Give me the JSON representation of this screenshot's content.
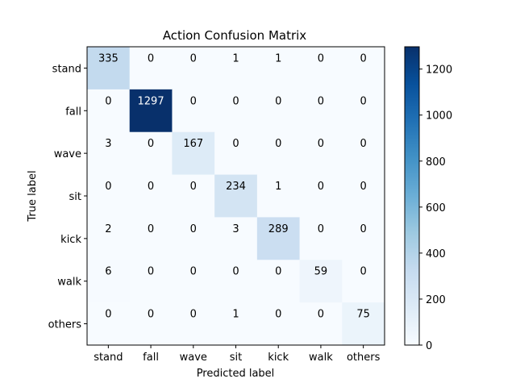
{
  "chart_data": {
    "type": "heatmap",
    "title": "Action Confusion Matrix",
    "xlabel": "Predicted label",
    "ylabel": "True label",
    "x_categories": [
      "stand",
      "fall",
      "wave",
      "sit",
      "kick",
      "walk",
      "others"
    ],
    "y_categories": [
      "stand",
      "fall",
      "wave",
      "sit",
      "kick",
      "walk",
      "others"
    ],
    "values": [
      [
        335,
        0,
        0,
        1,
        1,
        0,
        0
      ],
      [
        0,
        1297,
        0,
        0,
        0,
        0,
        0
      ],
      [
        3,
        0,
        167,
        0,
        0,
        0,
        0
      ],
      [
        0,
        0,
        0,
        234,
        1,
        0,
        0
      ],
      [
        2,
        0,
        0,
        3,
        289,
        0,
        0
      ],
      [
        6,
        0,
        0,
        0,
        0,
        59,
        0
      ],
      [
        0,
        0,
        0,
        1,
        0,
        0,
        75
      ]
    ],
    "colormap": "Blues",
    "colorbar": {
      "range": [
        0,
        1297
      ],
      "ticks": [
        0,
        200,
        400,
        600,
        800,
        1000,
        1200
      ]
    },
    "grid": false
  }
}
